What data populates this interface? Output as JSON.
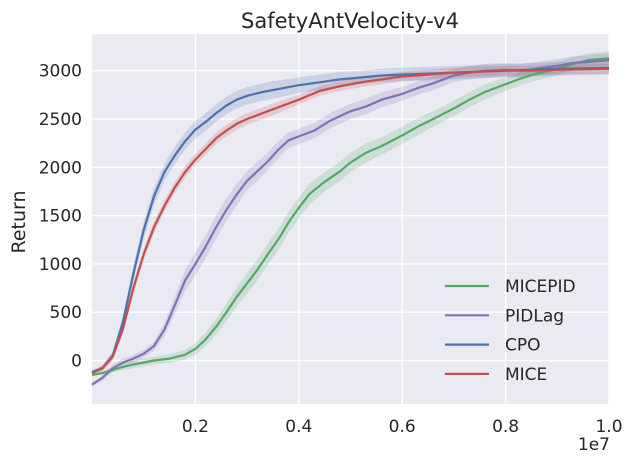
{
  "chart_data": {
    "type": "line",
    "title": "SafetyAntVelocity-v4",
    "xlabel": "",
    "ylabel": "Return",
    "x_offset_label": "1e7",
    "xlim": [
      0.0,
      1.0
    ],
    "ylim": [
      -450,
      3380
    ],
    "x_ticks": [
      0.2,
      0.4,
      0.6,
      0.8,
      1.0
    ],
    "x_tick_labels": [
      "0.2",
      "0.4",
      "0.6",
      "0.8",
      "1.0"
    ],
    "y_ticks": [
      0,
      500,
      1000,
      1500,
      2000,
      2500,
      3000
    ],
    "y_tick_labels": [
      "0",
      "500",
      "1000",
      "1500",
      "2000",
      "2500",
      "3000"
    ],
    "grid": true,
    "legend_position": "bottom-right",
    "background_color": "#eaeaf2",
    "series": [
      {
        "name": "MICEPID",
        "color": "#55a868",
        "x": [
          0.0,
          0.02,
          0.05,
          0.08,
          0.1,
          0.12,
          0.15,
          0.18,
          0.2,
          0.22,
          0.24,
          0.26,
          0.28,
          0.3,
          0.32,
          0.34,
          0.36,
          0.38,
          0.4,
          0.42,
          0.45,
          0.48,
          0.5,
          0.53,
          0.56,
          0.6,
          0.63,
          0.66,
          0.7,
          0.73,
          0.76,
          0.8,
          0.83,
          0.86,
          0.9,
          0.93,
          0.96,
          1.0
        ],
        "values": [
          -150,
          -130,
          -80,
          -40,
          -20,
          0,
          20,
          60,
          120,
          220,
          350,
          500,
          660,
          800,
          940,
          1100,
          1250,
          1430,
          1580,
          1720,
          1850,
          1960,
          2050,
          2150,
          2220,
          2330,
          2420,
          2500,
          2610,
          2700,
          2780,
          2860,
          2920,
          2970,
          3020,
          3070,
          3110,
          3130
        ],
        "band": [
          10,
          15,
          30,
          40,
          40,
          40,
          45,
          50,
          60,
          70,
          80,
          90,
          100,
          110,
          110,
          110,
          110,
          110,
          110,
          110,
          100,
          100,
          100,
          100,
          90,
          90,
          90,
          80,
          80,
          80,
          80,
          70,
          70,
          70,
          70,
          70,
          70,
          70
        ]
      },
      {
        "name": "PIDLag",
        "color": "#8172b3",
        "x": [
          0.0,
          0.02,
          0.04,
          0.06,
          0.08,
          0.1,
          0.12,
          0.14,
          0.16,
          0.18,
          0.2,
          0.22,
          0.24,
          0.26,
          0.28,
          0.3,
          0.32,
          0.34,
          0.36,
          0.38,
          0.4,
          0.43,
          0.46,
          0.5,
          0.53,
          0.56,
          0.6,
          0.63,
          0.66,
          0.7,
          0.73,
          0.76,
          0.8,
          0.83,
          0.86,
          0.9,
          0.93,
          0.96,
          1.0
        ],
        "values": [
          -250,
          -180,
          -80,
          -20,
          20,
          70,
          150,
          320,
          570,
          830,
          1000,
          1180,
          1380,
          1560,
          1720,
          1860,
          1960,
          2060,
          2180,
          2280,
          2320,
          2380,
          2480,
          2580,
          2630,
          2700,
          2760,
          2820,
          2870,
          2950,
          2980,
          3000,
          3010,
          3000,
          3020,
          3050,
          3080,
          3090,
          3110
        ],
        "band": [
          20,
          30,
          40,
          40,
          40,
          40,
          50,
          70,
          90,
          110,
          120,
          120,
          120,
          120,
          110,
          100,
          100,
          90,
          90,
          80,
          80,
          80,
          80,
          80,
          80,
          80,
          70,
          70,
          70,
          70,
          70,
          70,
          70,
          70,
          70,
          70,
          70,
          70,
          70
        ]
      },
      {
        "name": "CPO",
        "color": "#4c72b0",
        "x": [
          0.0,
          0.02,
          0.04,
          0.06,
          0.08,
          0.1,
          0.12,
          0.14,
          0.16,
          0.18,
          0.2,
          0.22,
          0.24,
          0.26,
          0.28,
          0.3,
          0.33,
          0.36,
          0.4,
          0.44,
          0.48,
          0.52,
          0.56,
          0.6,
          0.65,
          0.7,
          0.75,
          0.8,
          0.85,
          0.9,
          0.95,
          1.0
        ],
        "values": [
          -120,
          -80,
          50,
          400,
          900,
          1350,
          1700,
          1950,
          2120,
          2270,
          2390,
          2470,
          2560,
          2640,
          2700,
          2740,
          2780,
          2810,
          2850,
          2880,
          2910,
          2930,
          2950,
          2960,
          2970,
          2980,
          2990,
          3000,
          3010,
          3020,
          3025,
          3030
        ],
        "band": [
          20,
          30,
          40,
          70,
          80,
          90,
          90,
          90,
          90,
          90,
          90,
          90,
          90,
          90,
          90,
          90,
          90,
          90,
          80,
          80,
          80,
          70,
          70,
          70,
          70,
          70,
          70,
          70,
          70,
          70,
          70,
          70
        ]
      },
      {
        "name": "MICE",
        "color": "#c44e52",
        "x": [
          0.0,
          0.02,
          0.04,
          0.06,
          0.08,
          0.1,
          0.12,
          0.14,
          0.16,
          0.18,
          0.2,
          0.22,
          0.24,
          0.26,
          0.28,
          0.3,
          0.33,
          0.36,
          0.4,
          0.44,
          0.48,
          0.52,
          0.56,
          0.6,
          0.65,
          0.7,
          0.75,
          0.8,
          0.85,
          0.9,
          0.95,
          1.0
        ],
        "values": [
          -130,
          -80,
          40,
          330,
          750,
          1100,
          1380,
          1600,
          1790,
          1950,
          2080,
          2190,
          2300,
          2380,
          2450,
          2500,
          2560,
          2620,
          2700,
          2790,
          2840,
          2880,
          2910,
          2940,
          2960,
          2980,
          2990,
          3000,
          3000,
          3010,
          3015,
          3020
        ],
        "band": [
          20,
          30,
          40,
          50,
          60,
          60,
          60,
          60,
          60,
          60,
          60,
          60,
          60,
          60,
          60,
          60,
          60,
          60,
          50,
          50,
          50,
          50,
          50,
          50,
          50,
          50,
          50,
          50,
          50,
          50,
          50,
          50
        ]
      }
    ]
  }
}
